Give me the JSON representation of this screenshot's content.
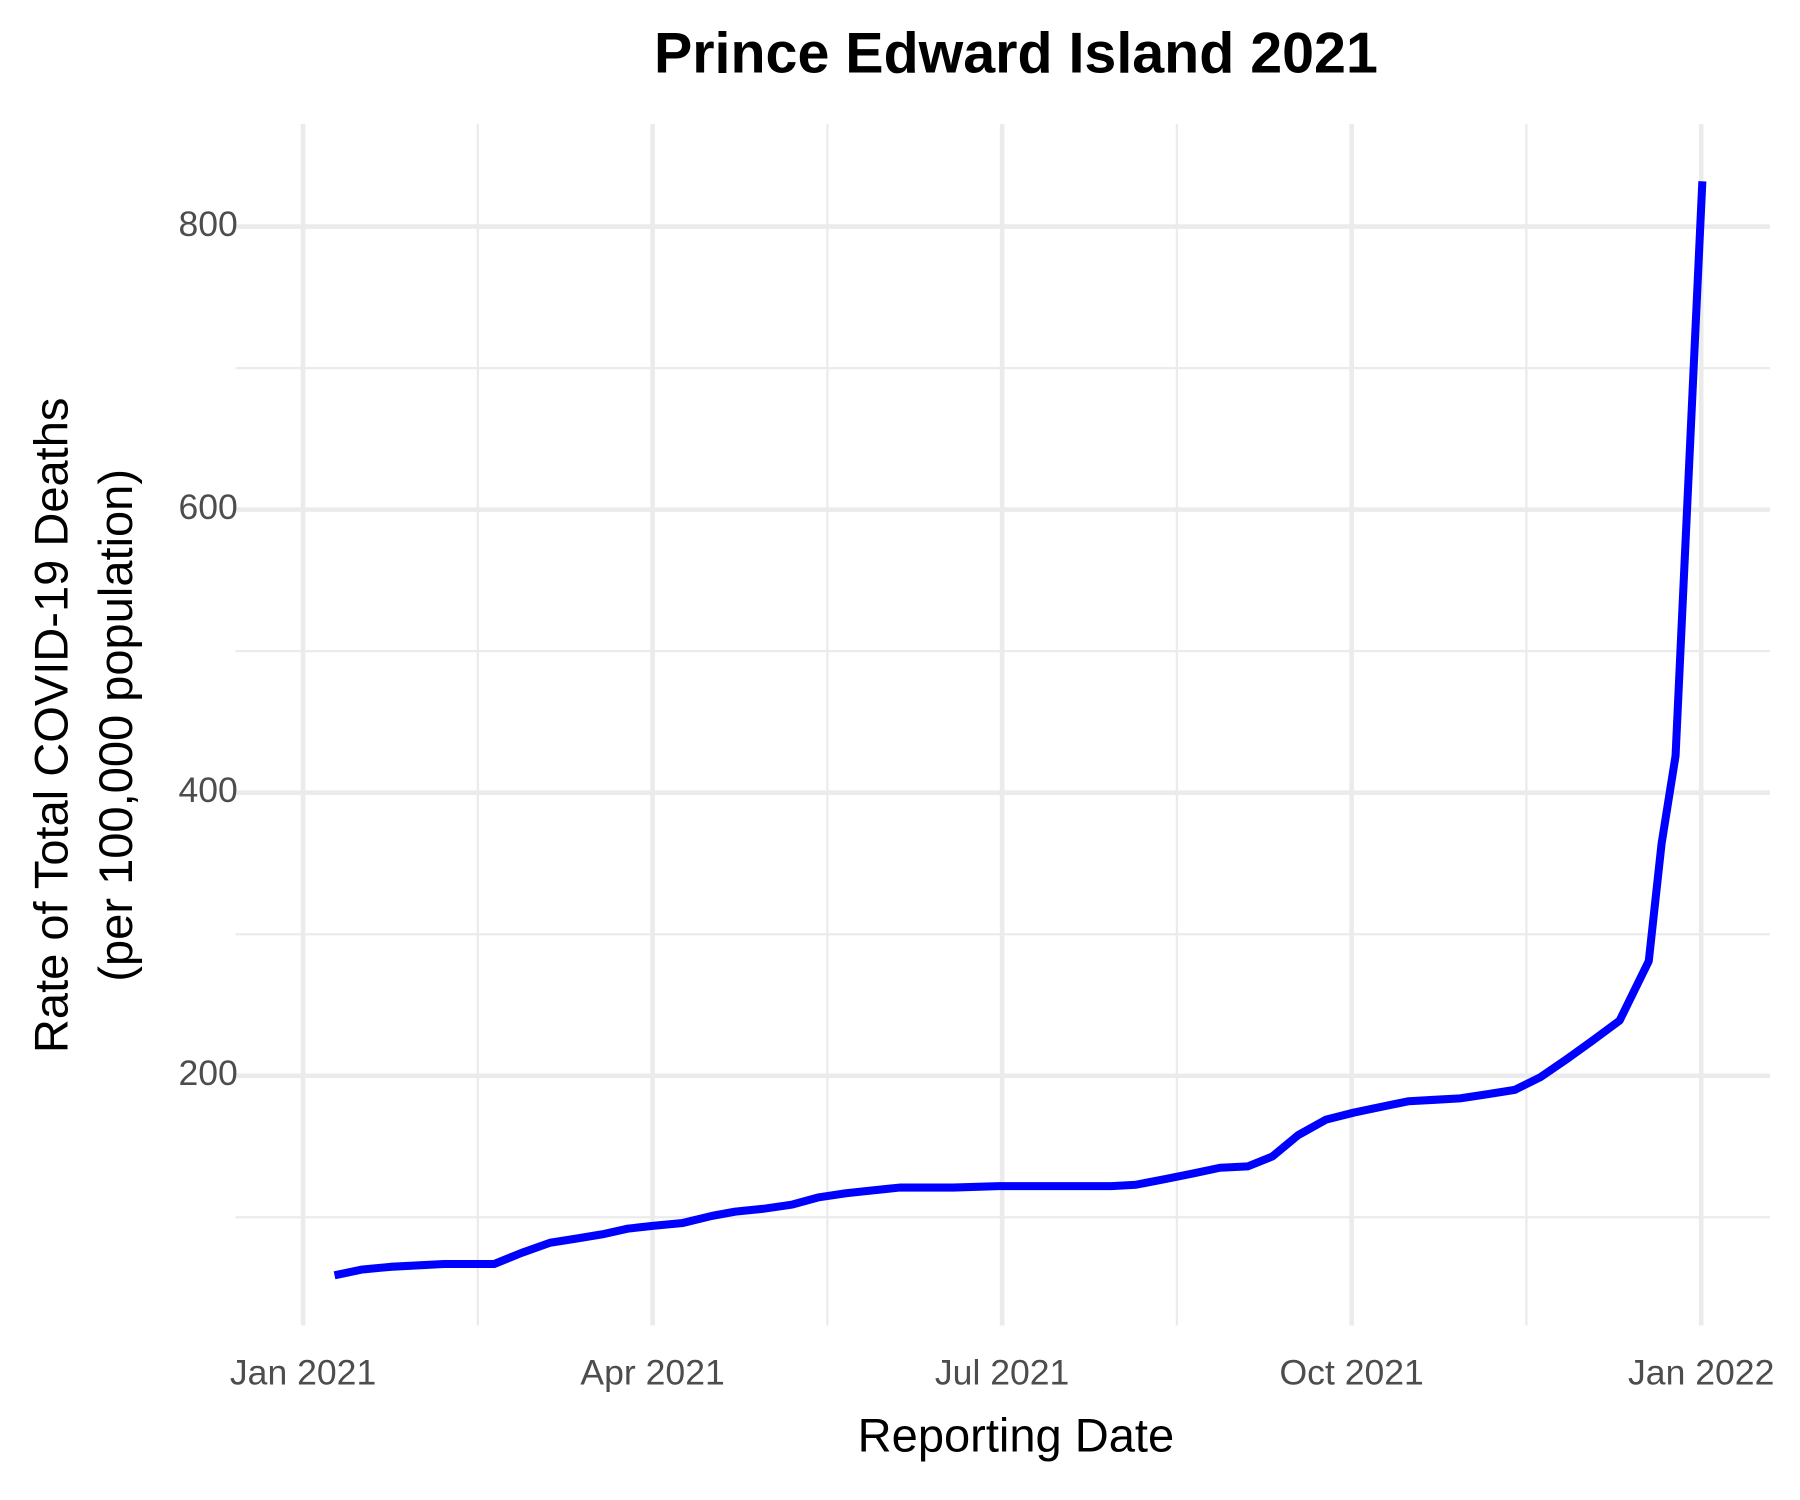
{
  "chart_data": {
    "type": "line",
    "title": "Prince Edward Island 2021",
    "xlabel": "Reporting Date",
    "ylabel": [
      "Rate of Total COVID-19 Deaths",
      "(per 100,000 population)"
    ],
    "x": [
      0.27,
      0.5,
      0.75,
      1.21,
      1.64,
      1.88,
      2.12,
      2.35,
      2.57,
      2.79,
      3.01,
      3.26,
      3.51,
      3.71,
      3.95,
      4.2,
      4.42,
      4.66,
      4.89,
      5.12,
      5.58,
      5.97,
      6.44,
      6.94,
      7.15,
      7.4,
      7.64,
      7.87,
      8.11,
      8.32,
      8.54,
      8.78,
      9.02,
      9.25,
      9.49,
      9.71,
      9.93,
      10.17,
      10.4,
      10.62,
      10.85,
      11.07,
      11.3,
      11.55,
      11.66,
      11.78,
      12.01
    ],
    "values": [
      59,
      63,
      65,
      67,
      67,
      75,
      82,
      85,
      88,
      92,
      94,
      96,
      101,
      104,
      106,
      109,
      114,
      117,
      119,
      121,
      121,
      122,
      122,
      122,
      123,
      127,
      131,
      135,
      136,
      143,
      158,
      169,
      174,
      178,
      182,
      183,
      184,
      187,
      190,
      199,
      212,
      225,
      239,
      281,
      364,
      426,
      832
    ],
    "color": "#0000ff",
    "xlim": [
      -0.58,
      12.59
    ],
    "xticks": [
      {
        "value": 0,
        "label": "Jan 2021"
      },
      {
        "value": 3,
        "label": "Apr 2021"
      },
      {
        "value": 6,
        "label": "Jul 2021"
      },
      {
        "value": 9,
        "label": "Oct 2021"
      },
      {
        "value": 12,
        "label": "Jan 2022"
      }
    ],
    "ylim": [
      23.5,
      872.5
    ],
    "yticks": [
      200,
      400,
      600,
      800
    ],
    "grid": true
  }
}
